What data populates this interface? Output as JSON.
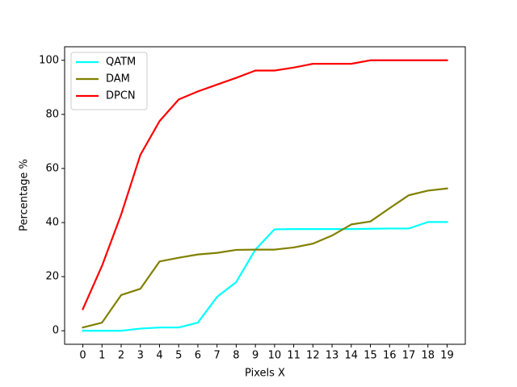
{
  "chart_data": {
    "type": "line",
    "xlabel": "Pixels X",
    "ylabel": "Percentage %",
    "x": [
      0,
      1,
      2,
      3,
      4,
      5,
      6,
      7,
      8,
      9,
      10,
      11,
      12,
      13,
      14,
      15,
      16,
      17,
      18,
      19
    ],
    "series": [
      {
        "name": "QATM",
        "color": "#00ffff",
        "values": [
          0,
          0,
          0,
          0.8,
          1.2,
          1.2,
          3,
          12.5,
          18,
          30,
          37.5,
          37.6,
          37.6,
          37.6,
          37.6,
          37.7,
          37.8,
          37.8,
          40.2,
          40.2
        ]
      },
      {
        "name": "DAM",
        "color": "#808000",
        "values": [
          1.2,
          3,
          13.2,
          15.5,
          25.6,
          27,
          28.2,
          28.8,
          29.9,
          30,
          30,
          30.8,
          32.2,
          35.2,
          39.3,
          40.4,
          45.3,
          50.1,
          51.8,
          52.6
        ]
      },
      {
        "name": "DPCN",
        "color": "#ff0000",
        "values": [
          8,
          24,
          43,
          65,
          77.5,
          85.5,
          88.5,
          91,
          93.5,
          96.2,
          96.2,
          97.3,
          98.7,
          98.7,
          98.7,
          100,
          100,
          100,
          100,
          100
        ]
      }
    ],
    "xlim": [
      -0.95,
      19.95
    ],
    "xticks": [
      0,
      1,
      2,
      3,
      4,
      5,
      6,
      7,
      8,
      9,
      10,
      11,
      12,
      13,
      14,
      15,
      16,
      17,
      18,
      19
    ],
    "ylim": [
      -5,
      105
    ],
    "yticks": [
      0,
      20,
      40,
      60,
      80,
      100
    ],
    "legend": "upper left",
    "grid": false
  }
}
